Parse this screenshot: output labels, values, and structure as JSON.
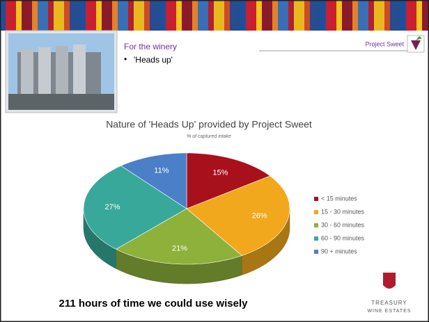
{
  "header": {
    "title": "For the winery",
    "bullet": "'Heads up'",
    "badge": "Project Sweet"
  },
  "chart_data": {
    "type": "pie",
    "title": "Nature of 'Heads Up' provided by Project Sweet",
    "subtitle": "% of captured intake",
    "categories": [
      "< 15 minutes",
      "15 - 30 minutes",
      "30 - 60 minutes",
      "60 - 90 minutes",
      "90 + minutes"
    ],
    "values": [
      15,
      26,
      21,
      27,
      11
    ],
    "value_labels": [
      "15%",
      "26%",
      "21%",
      "27%",
      "11%"
    ],
    "colors": [
      "#a8101c",
      "#f2a81d",
      "#8db13a",
      "#38a89a",
      "#4b80c8"
    ],
    "legend": "right"
  },
  "footer": {
    "text": "211 hours of time we could use wisely",
    "logo_line1": "TREASURY",
    "logo_line2": "WINE ESTATES"
  }
}
